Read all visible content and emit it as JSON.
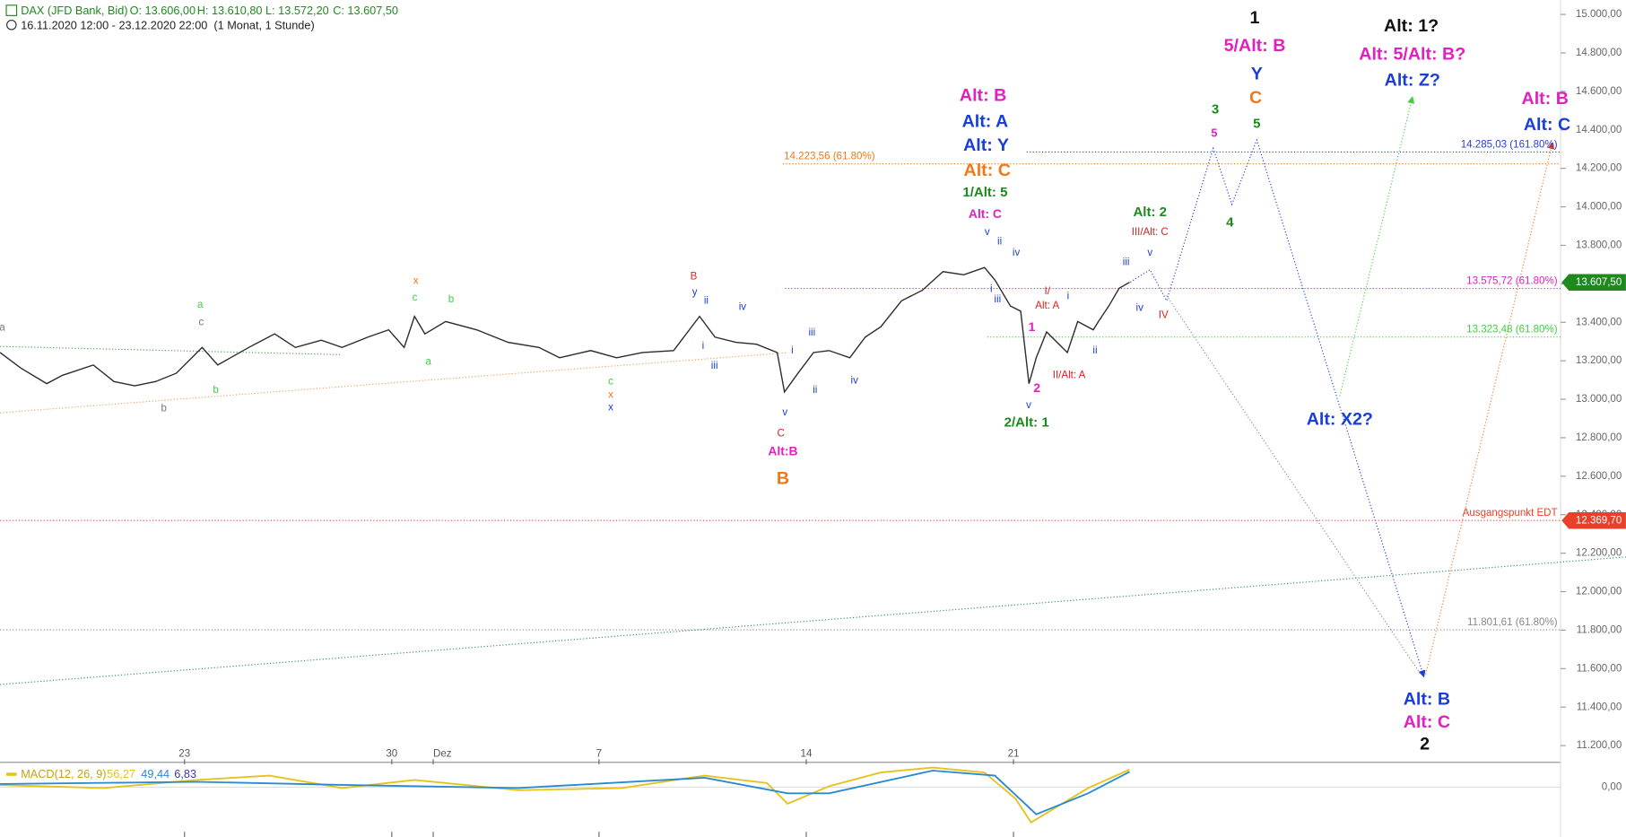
{
  "chart_data": {
    "type": "line",
    "title": "DAX (JFD Bank, Bid)",
    "ohlc": [
      "O: 13.606,00",
      "H: 13.610,80",
      "L: 13.572,20",
      "C: 13.607,50"
    ],
    "subtitle": "16.11.2020 12:00 - 23.12.2020 22:00  (1 Monat, 1 Stunde)",
    "xlim": [
      0.55,
      38.2
    ],
    "xticks": [
      {
        "value": 5,
        "label": "23"
      },
      {
        "value": 10,
        "label": "30"
      },
      {
        "value": 11,
        "label": "Dez"
      },
      {
        "value": 15,
        "label": "7"
      },
      {
        "value": 20,
        "label": "14"
      },
      {
        "value": 25,
        "label": "21"
      }
    ],
    "ylim": [
      11113,
      15075
    ],
    "yticks": [
      {
        "value": 11200,
        "label": "11.200,00"
      },
      {
        "value": 11400,
        "label": "11.400,00"
      },
      {
        "value": 11600,
        "label": "11.600,00"
      },
      {
        "value": 11800,
        "label": "11.800,00"
      },
      {
        "value": 12000,
        "label": "12.000,00"
      },
      {
        "value": 12200,
        "label": "12.200,00"
      },
      {
        "value": 12400,
        "label": "12.400,00"
      },
      {
        "value": 12600,
        "label": "12.600,00"
      },
      {
        "value": 12800,
        "label": "12.800,00"
      },
      {
        "value": 13000,
        "label": "13.000,00"
      },
      {
        "value": 13200,
        "label": "13.200,00"
      },
      {
        "value": 13400,
        "label": "13.400,00"
      },
      {
        "value": 13600,
        "label": "13.600,00"
      },
      {
        "value": 13800,
        "label": "13.800,00"
      },
      {
        "value": 14000,
        "label": "14.000,00"
      },
      {
        "value": 14200,
        "label": "14.200,00"
      },
      {
        "value": 14400,
        "label": "14.400,00"
      },
      {
        "value": 14600,
        "label": "14.600,00"
      },
      {
        "value": 14800,
        "label": "14.800,00"
      },
      {
        "value": 15000,
        "label": "15.000,00"
      }
    ],
    "x": [
      0.55,
      1.05,
      1.675,
      2.05,
      2.8,
      3.3,
      3.8,
      4.3,
      4.8,
      5.425,
      5.8,
      6.55,
      7.175,
      7.675,
      8.3,
      8.8,
      9.425,
      9.925,
      10.3,
      10.55,
      10.8,
      11.3,
      12.05,
      12.8,
      13.55,
      14.05,
      14.8,
      15.425,
      16.05,
      16.8,
      17.425,
      17.8,
      18.3,
      18.8,
      19.3,
      19.475,
      19.8,
      20.175,
      20.55,
      21.05,
      21.425,
      21.8,
      22.3,
      22.8,
      23.3,
      23.8,
      24.3,
      24.55,
      24.925,
      25.175,
      25.375,
      25.55,
      25.8,
      26.05,
      26.3,
      26.55,
      26.925,
      27.05,
      27.3,
      27.55,
      27.8
    ],
    "series": [
      {
        "color": "#2b2b2b",
        "values": [
          13243,
          13162,
          13081,
          13124,
          13178,
          13092,
          13070,
          13092,
          13135,
          13269,
          13178,
          13269,
          13340,
          13269,
          13307,
          13269,
          13323,
          13361,
          13269,
          13431,
          13340,
          13404,
          13361,
          13296,
          13269,
          13216,
          13253,
          13216,
          13243,
          13253,
          13431,
          13323,
          13296,
          13286,
          13243,
          13038,
          13135,
          13243,
          13253,
          13216,
          13323,
          13377,
          13512,
          13566,
          13663,
          13647,
          13685,
          13620,
          13485,
          13458,
          13081,
          13216,
          13350,
          13296,
          13243,
          13404,
          13361,
          13404,
          13485,
          13577,
          13607.5
        ]
      }
    ],
    "last_price": {
      "value": 13607.5,
      "label": "13.607,50",
      "color": "#1e8a1e"
    },
    "levels": [
      {
        "value": 14285.03,
        "label": "14.285,03 (161.80%)",
        "color": "#2a3fd0"
      },
      {
        "value": 14223.56,
        "label": "14.223,56 (61.80%)",
        "color": "#f07818"
      },
      {
        "value": 13575.72,
        "label": "13.575,72 (61.80%)",
        "color": "#e020c0"
      },
      {
        "value": 13323.48,
        "label": "13.323,48 (61.80%)",
        "color": "#40d040"
      },
      {
        "value": 12369.7,
        "label": "Ausgangspunkt EDT",
        "tag": "12.369,70",
        "color": "#e8402a"
      },
      {
        "value": 11801.61,
        "label": "11.801,61 (61.80%)",
        "color": "#888888"
      }
    ],
    "annotations": [
      {
        "text": "1",
        "color": "#111111"
      },
      {
        "text": "5/Alt: B",
        "color": "#e020c0"
      },
      {
        "text": "Y",
        "color": "#1a3fd6"
      },
      {
        "text": "C",
        "color": "#f07818"
      },
      {
        "text": "Alt: 1?",
        "color": "#111111"
      },
      {
        "text": "Alt: 5/Alt: B?",
        "color": "#e020c0"
      },
      {
        "text": "Alt: Z?",
        "color": "#1a3fd6"
      },
      {
        "text": "Alt: B",
        "color": "#e020c0"
      },
      {
        "text": "Alt: C",
        "color": "#1a3fd6"
      },
      {
        "text": "Alt: B",
        "color": "#e020c0"
      },
      {
        "text": "Alt: A",
        "color": "#1a3fd6"
      },
      {
        "text": "Alt: Y",
        "color": "#1a3fd6"
      },
      {
        "text": "Alt: C",
        "color": "#f07818"
      },
      {
        "text": "B",
        "color": "#f07818"
      },
      {
        "text": "Alt: X2?",
        "color": "#1a3fd6"
      },
      {
        "text": "Alt: B",
        "color": "#1a3fd6"
      },
      {
        "text": "Alt: C",
        "color": "#e020c0"
      },
      {
        "text": "2",
        "color": "#111111"
      },
      {
        "text": "1/Alt: 5",
        "color": "#1a8a1a"
      },
      {
        "text": "Alt: C",
        "color": "#e020c0"
      },
      {
        "text": "2/Alt: 1",
        "color": "#1a8a1a"
      },
      {
        "text": "Alt: 2",
        "color": "#1a8a1a"
      },
      {
        "text": "Alt:B",
        "color": "#e020c0"
      },
      {
        "text": "3",
        "color": "#1a8a1a"
      },
      {
        "text": "5",
        "color": "#e020c0"
      },
      {
        "text": "5",
        "color": "#1a8a1a"
      },
      {
        "text": "4",
        "color": "#1a8a1a"
      },
      {
        "text": "1",
        "color": "#e020c0"
      },
      {
        "text": "2",
        "color": "#e020c0"
      },
      {
        "text": "III/Alt: C",
        "color": "#e02020"
      },
      {
        "text": "IV",
        "color": "#e02020"
      },
      {
        "text": "II/Alt: A",
        "color": "#e02020"
      },
      {
        "text": "I/",
        "color": "#e02020"
      },
      {
        "text": "Alt: A",
        "color": "#e02020"
      },
      {
        "text": "C",
        "color": "#e02020"
      },
      {
        "text": "B",
        "color": "#e02020"
      },
      {
        "text": "y",
        "color": "#1a3fd6"
      },
      {
        "text": "v",
        "color": "#1a3fd6"
      },
      {
        "text": "ii",
        "color": "#1a3fd6"
      },
      {
        "text": "iv",
        "color": "#1a3fd6"
      },
      {
        "text": "i",
        "color": "#1a3fd6"
      },
      {
        "text": "iii",
        "color": "#1a3fd6"
      },
      {
        "text": "i",
        "color": "#1a3fd6"
      },
      {
        "text": "iii",
        "color": "#1a3fd6"
      },
      {
        "text": "ii",
        "color": "#1a3fd6"
      },
      {
        "text": "iv",
        "color": "#1a3fd6"
      },
      {
        "text": "v",
        "color": "#1a3fd6"
      },
      {
        "text": "ii",
        "color": "#1a3fd6"
      },
      {
        "text": "iv",
        "color": "#1a3fd6"
      },
      {
        "text": "i",
        "color": "#1a3fd6"
      },
      {
        "text": "iii",
        "color": "#1a3fd6"
      },
      {
        "text": "v",
        "color": "#1a3fd6"
      },
      {
        "text": "i",
        "color": "#1a3fd6"
      },
      {
        "text": "ii",
        "color": "#1a3fd6"
      },
      {
        "text": "iii",
        "color": "#1a3fd6"
      },
      {
        "text": "v",
        "color": "#1a3fd6"
      },
      {
        "text": "iv",
        "color": "#1a3fd6"
      },
      {
        "text": "x",
        "color": "#f07818"
      },
      {
        "text": "c",
        "color": "#40d040"
      },
      {
        "text": "b",
        "color": "#40d040"
      },
      {
        "text": "a",
        "color": "#40d040"
      },
      {
        "text": "a",
        "color": "#40d040"
      },
      {
        "text": "c",
        "color": "#777777"
      },
      {
        "text": "b",
        "color": "#40d040"
      },
      {
        "text": "b",
        "color": "#777777"
      },
      {
        "text": "a",
        "color": "#777777"
      },
      {
        "text": "c",
        "color": "#40d040"
      },
      {
        "text": "x",
        "color": "#f07818"
      },
      {
        "text": "x",
        "color": "#1a3fd6"
      }
    ],
    "macd": {
      "title": "MACD(12, 26, 9)",
      "ylim": [
        -160,
        73
      ],
      "yticks": [
        {
          "value": 0,
          "label": "0,00"
        }
      ],
      "histogram_label": "6,83",
      "histogram_color": "#3a3aa0",
      "series": [
        {
          "label": "56,27",
          "color": "#e6c21a",
          "x": [
            0.55,
            3.05,
            5.3,
            7.05,
            8.8,
            10.55,
            13.05,
            15.55,
            17.55,
            19.05,
            19.55,
            20.55,
            21.8,
            23.05,
            24.3,
            25.05,
            25.425,
            26.05,
            26.8,
            27.8
          ],
          "values": [
            6.7,
            -3,
            23,
            37,
            -3,
            23,
            -10,
            -3,
            37,
            13,
            -53,
            3,
            47,
            63,
            47,
            -37,
            -113,
            -63,
            -3,
            56.27
          ]
        },
        {
          "label": "49,44",
          "color": "#2a8ad0",
          "x": [
            0.55,
            5.3,
            8.8,
            13.05,
            17.55,
            19.55,
            20.55,
            23.05,
            24.55,
            25.55,
            26.8,
            27.8
          ],
          "values": [
            10,
            17,
            7,
            -3,
            30,
            -20,
            -20,
            53,
            37,
            -87,
            -20,
            49.44
          ]
        }
      ]
    }
  }
}
